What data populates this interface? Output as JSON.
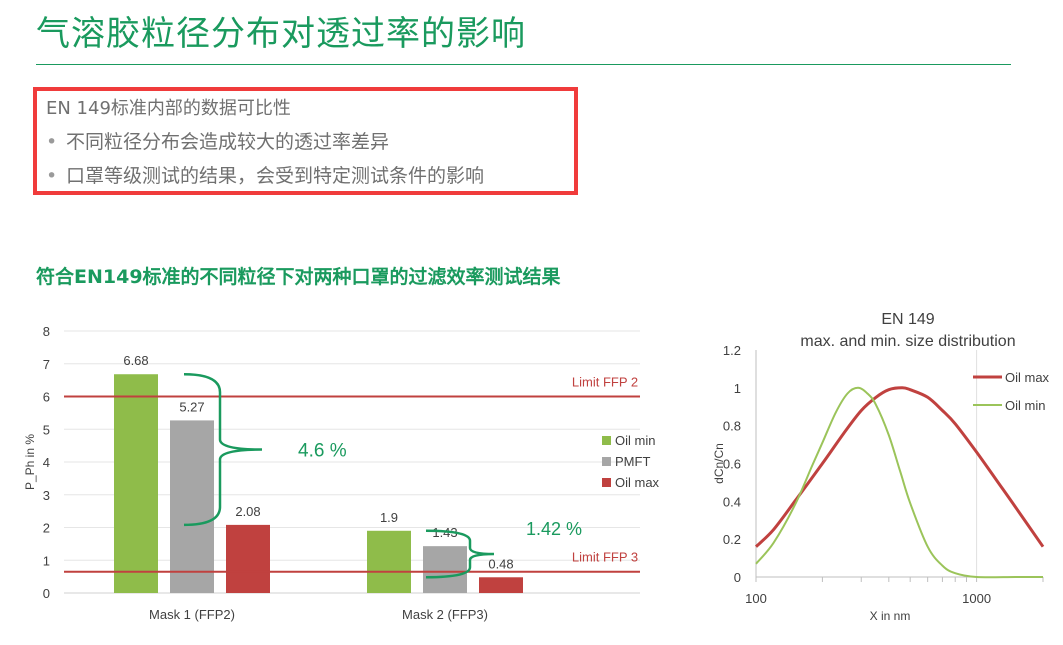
{
  "slide": {
    "title": "气溶胶粒径分布对透过率的影响",
    "box_heading": "EN 149标准内部的数据可比性",
    "bullets": [
      "不同粒径分布会造成较大的透过率差异",
      "口罩等级测试的结果，会受到特定测试条件的影响"
    ],
    "bullet_char": "•",
    "chart_section_title": "符合EN149标准的不同粒径下对两种口罩的过滤效率测试结果"
  },
  "chart_data": [
    {
      "type": "bar",
      "title": "",
      "ylabel": "P_Ph in %",
      "xlabel": "",
      "ylim": [
        0,
        8
      ],
      "yticks": [
        0,
        1,
        2,
        3,
        4,
        5,
        6,
        7,
        8
      ],
      "categories": [
        "Mask 1 (FFP2)",
        "Mask 2 (FFP3)"
      ],
      "series": [
        {
          "name": "Oil min",
          "color": "#8fbc4a",
          "values": [
            6.68,
            1.9
          ]
        },
        {
          "name": "PMFT",
          "color": "#a6a6a6",
          "values": [
            5.27,
            1.43
          ]
        },
        {
          "name": "Oil max",
          "color": "#c0413f",
          "values": [
            2.08,
            0.48
          ]
        }
      ],
      "data_labels": [
        "6.68",
        "5.27",
        "2.08",
        "1.9",
        "1.43",
        "0.48"
      ],
      "reference_lines": [
        {
          "label": "Limit FFP 2",
          "y": 6,
          "color": "#c0413f"
        },
        {
          "label": "Limit FFP 3",
          "y": 0.65,
          "color": "#c0413f"
        }
      ],
      "annotations": [
        "4.6 %",
        "1.42 %"
      ],
      "annotation_color": "#1a9a5e",
      "legend_position": "right"
    },
    {
      "type": "line",
      "title": "EN 149",
      "subtitle": "max. and min. size distribution",
      "xlabel": "X in nm",
      "ylabel": "dCn/Cn",
      "xscale": "log",
      "xlim": [
        100,
        2000
      ],
      "xticks": [
        "100",
        "1000"
      ],
      "ylim": [
        0,
        1.2
      ],
      "yticks": [
        "0",
        "0.2",
        "0.4",
        "0.6",
        "0.8",
        "1",
        "1.2"
      ],
      "series": [
        {
          "name": "Oil max",
          "color": "#c0413f",
          "x": [
            100,
            120,
            150,
            200,
            250,
            300,
            350,
            400,
            460,
            500,
            600,
            700,
            800,
            1000,
            1200,
            1500,
            2000
          ],
          "y": [
            0.16,
            0.25,
            0.4,
            0.6,
            0.76,
            0.88,
            0.95,
            0.99,
            1.0,
            0.99,
            0.95,
            0.88,
            0.81,
            0.66,
            0.53,
            0.37,
            0.16
          ]
        },
        {
          "name": "Oil min",
          "color": "#9bc45a",
          "x": [
            100,
            120,
            150,
            180,
            200,
            230,
            260,
            290,
            320,
            350,
            400,
            450,
            500,
            600,
            700,
            800,
            1000,
            1500,
            2000
          ],
          "y": [
            0.07,
            0.18,
            0.38,
            0.59,
            0.71,
            0.87,
            0.97,
            1.0,
            0.97,
            0.91,
            0.75,
            0.56,
            0.39,
            0.16,
            0.06,
            0.02,
            0.0,
            0.0,
            0.0
          ]
        }
      ],
      "legend_position": "right"
    }
  ]
}
